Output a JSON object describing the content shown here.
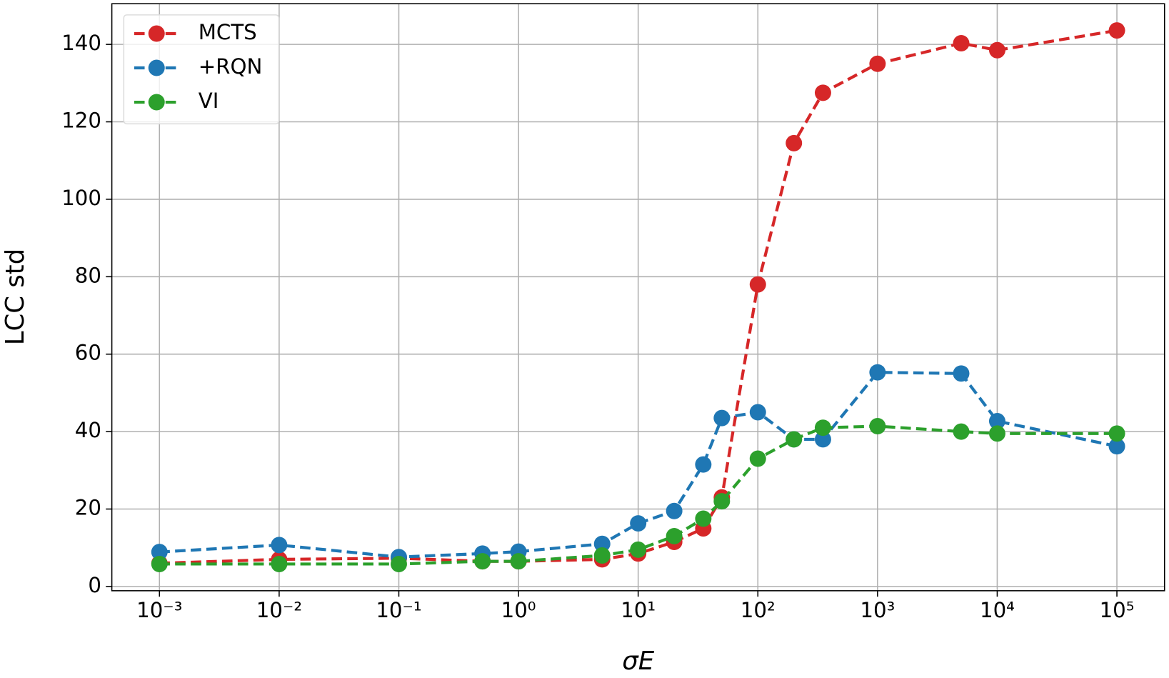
{
  "chart_data": {
    "type": "line",
    "x_label": "σE",
    "y_label": "LCC std",
    "x": [
      0.001,
      0.01,
      0.1,
      0.5,
      1,
      5,
      10,
      20,
      35,
      50,
      100,
      200,
      350,
      1000,
      5000,
      10000,
      100000
    ],
    "series": [
      {
        "name": "MCTS",
        "color": "#d62728",
        "values": [
          6,
          7,
          7.3,
          6.5,
          6.5,
          7,
          8.5,
          11.5,
          15,
          23,
          78,
          114.5,
          127.5,
          135,
          140.3,
          138.5,
          143.6
        ]
      },
      {
        "name": "+RQN",
        "color": "#1f77b4",
        "values": [
          8.9,
          10.7,
          7.6,
          8.5,
          9,
          11,
          16.3,
          19.5,
          31.5,
          43.5,
          45,
          38,
          38,
          55.3,
          55,
          42.7,
          36.2
        ]
      },
      {
        "name": "VI",
        "color": "#2ca02c",
        "values": [
          5.8,
          5.8,
          5.8,
          6.5,
          6.5,
          8,
          9.5,
          13,
          17.5,
          22,
          33,
          38,
          41,
          41.4,
          40,
          39.5,
          39.5
        ]
      }
    ],
    "xscale": "log",
    "xlim": [
      0.0004,
      250000
    ],
    "xticks": [
      {
        "value": 0.001,
        "label": "10⁻³"
      },
      {
        "value": 0.01,
        "label": "10⁻²"
      },
      {
        "value": 0.1,
        "label": "10⁻¹"
      },
      {
        "value": 1,
        "label": "10⁰"
      },
      {
        "value": 10,
        "label": "10¹"
      },
      {
        "value": 100,
        "label": "10²"
      },
      {
        "value": 1000,
        "label": "10³"
      },
      {
        "value": 10000,
        "label": "10⁴"
      },
      {
        "value": 100000,
        "label": "10⁵"
      }
    ],
    "ylim": [
      -1.1,
      150.5
    ],
    "yticks": [
      0,
      20,
      40,
      60,
      80,
      100,
      120,
      140
    ],
    "grid": true,
    "legend": "upper left"
  }
}
